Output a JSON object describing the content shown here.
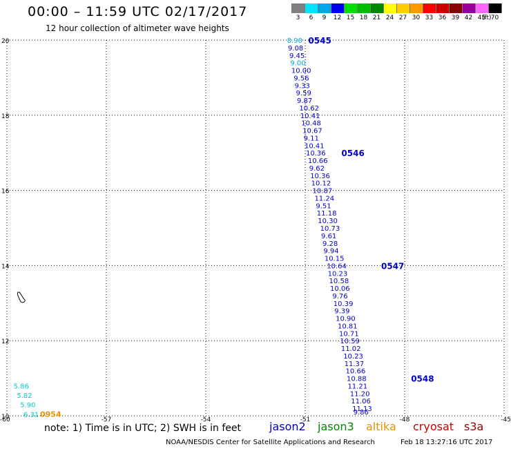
{
  "header": {
    "title": "00:00 – 11:59 UTC 02/17/2017",
    "subtitle": "12 hour collection of altimeter wave heights"
  },
  "color_scale": {
    "unit_label": "(ft)",
    "bins": [
      {
        "label": "3",
        "color": "#808080"
      },
      {
        "label": "6",
        "color": "#00e5ff"
      },
      {
        "label": "9",
        "color": "#00a8e8"
      },
      {
        "label": "12",
        "color": "#0000ee"
      },
      {
        "label": "15",
        "color": "#00e000"
      },
      {
        "label": "18",
        "color": "#00bb00"
      },
      {
        "label": "21",
        "color": "#008800"
      },
      {
        "label": "24",
        "color": "#ffff00"
      },
      {
        "label": "27",
        "color": "#ffcc00"
      },
      {
        "label": "30",
        "color": "#ff9900"
      },
      {
        "label": "33",
        "color": "#ff0000"
      },
      {
        "label": "36",
        "color": "#cc0000"
      },
      {
        "label": "39",
        "color": "#880000"
      },
      {
        "label": "42",
        "color": "#990099"
      },
      {
        "label": "45",
        "color": "#ff66ff"
      },
      {
        "label": "70",
        "color": "#000000"
      }
    ]
  },
  "map": {
    "lon_range": [
      -60,
      -45
    ],
    "lat_range": [
      10,
      20
    ],
    "lon_ticks": [
      "-60",
      "-57",
      "-54",
      "-51",
      "-48",
      "-45"
    ],
    "lat_ticks": [
      "10",
      "12",
      "14",
      "16",
      "18",
      "20"
    ],
    "track_jason2": {
      "color": "#0000cc",
      "times": [
        {
          "label": "0545",
          "lon": -50.7,
          "lat": 20.0
        },
        {
          "label": "0546",
          "lon": -49.7,
          "lat": 17.0
        },
        {
          "label": "0547",
          "lon": -48.5,
          "lat": 14.0
        },
        {
          "label": "0548",
          "lon": -47.6,
          "lat": 11.0
        }
      ],
      "points": [
        {
          "lon": -51.3,
          "lat": 20.0,
          "v": "8.90",
          "c": "#00a8e8"
        },
        {
          "lon": -51.27,
          "lat": 19.8,
          "v": "9.08",
          "c": "#0000cc"
        },
        {
          "lon": -51.23,
          "lat": 19.6,
          "v": "9.45",
          "c": "#0000cc"
        },
        {
          "lon": -51.2,
          "lat": 19.4,
          "v": "9.00",
          "c": "#00a8e8"
        },
        {
          "lon": -51.17,
          "lat": 19.2,
          "v": "10.00",
          "c": "#0000cc"
        },
        {
          "lon": -51.1,
          "lat": 19.0,
          "v": "9.56",
          "c": "#0000cc"
        },
        {
          "lon": -51.07,
          "lat": 18.8,
          "v": "9.33",
          "c": "#0000cc"
        },
        {
          "lon": -51.03,
          "lat": 18.6,
          "v": "9.59",
          "c": "#0000cc"
        },
        {
          "lon": -51.0,
          "lat": 18.4,
          "v": "9.87",
          "c": "#0000cc"
        },
        {
          "lon": -50.93,
          "lat": 18.2,
          "v": "10.62",
          "c": "#0000cc"
        },
        {
          "lon": -50.9,
          "lat": 18.0,
          "v": "10.41",
          "c": "#0000cc"
        },
        {
          "lon": -50.87,
          "lat": 17.8,
          "v": "10.48",
          "c": "#0000cc"
        },
        {
          "lon": -50.83,
          "lat": 17.6,
          "v": "10.67",
          "c": "#0000cc"
        },
        {
          "lon": -50.8,
          "lat": 17.4,
          "v": "9.11",
          "c": "#0000cc"
        },
        {
          "lon": -50.77,
          "lat": 17.2,
          "v": "10.41",
          "c": "#0000cc"
        },
        {
          "lon": -50.73,
          "lat": 17.0,
          "v": "10.36",
          "c": "#0000cc"
        },
        {
          "lon": -50.67,
          "lat": 16.8,
          "v": "10.66",
          "c": "#0000cc"
        },
        {
          "lon": -50.63,
          "lat": 16.6,
          "v": "9.62",
          "c": "#0000cc"
        },
        {
          "lon": -50.6,
          "lat": 16.4,
          "v": "10.36",
          "c": "#0000cc"
        },
        {
          "lon": -50.57,
          "lat": 16.2,
          "v": "10.12",
          "c": "#0000cc"
        },
        {
          "lon": -50.53,
          "lat": 16.0,
          "v": "10.87",
          "c": "#0000cc"
        },
        {
          "lon": -50.47,
          "lat": 15.8,
          "v": "11.24",
          "c": "#0000cc"
        },
        {
          "lon": -50.43,
          "lat": 15.6,
          "v": "9.51",
          "c": "#0000cc"
        },
        {
          "lon": -50.4,
          "lat": 15.4,
          "v": "11.18",
          "c": "#0000cc"
        },
        {
          "lon": -50.37,
          "lat": 15.2,
          "v": "10.30",
          "c": "#0000cc"
        },
        {
          "lon": -50.3,
          "lat": 15.0,
          "v": "10.73",
          "c": "#0000cc"
        },
        {
          "lon": -50.27,
          "lat": 14.8,
          "v": "9.61",
          "c": "#0000cc"
        },
        {
          "lon": -50.23,
          "lat": 14.6,
          "v": "9.28",
          "c": "#0000cc"
        },
        {
          "lon": -50.2,
          "lat": 14.4,
          "v": "9.94",
          "c": "#0000cc"
        },
        {
          "lon": -50.17,
          "lat": 14.2,
          "v": "10.15",
          "c": "#0000cc"
        },
        {
          "lon": -50.1,
          "lat": 14.0,
          "v": "10.64",
          "c": "#0000cc"
        },
        {
          "lon": -50.07,
          "lat": 13.8,
          "v": "10.23",
          "c": "#0000cc"
        },
        {
          "lon": -50.03,
          "lat": 13.6,
          "v": "10.58",
          "c": "#0000cc"
        },
        {
          "lon": -50.0,
          "lat": 13.4,
          "v": "10.06",
          "c": "#0000cc"
        },
        {
          "lon": -49.93,
          "lat": 13.2,
          "v": "9.76",
          "c": "#0000cc"
        },
        {
          "lon": -49.9,
          "lat": 13.0,
          "v": "10.39",
          "c": "#0000cc"
        },
        {
          "lon": -49.87,
          "lat": 12.8,
          "v": "9.39",
          "c": "#0000cc"
        },
        {
          "lon": -49.83,
          "lat": 12.6,
          "v": "10.90",
          "c": "#0000cc"
        },
        {
          "lon": -49.77,
          "lat": 12.4,
          "v": "10.81",
          "c": "#0000cc"
        },
        {
          "lon": -49.73,
          "lat": 12.2,
          "v": "10.71",
          "c": "#0000cc"
        },
        {
          "lon": -49.7,
          "lat": 12.0,
          "v": "10.59",
          "c": "#0000cc"
        },
        {
          "lon": -49.67,
          "lat": 11.8,
          "v": "11.02",
          "c": "#0000cc"
        },
        {
          "lon": -49.6,
          "lat": 11.6,
          "v": "10.23",
          "c": "#0000cc"
        },
        {
          "lon": -49.57,
          "lat": 11.4,
          "v": "11.37",
          "c": "#0000cc"
        },
        {
          "lon": -49.53,
          "lat": 11.2,
          "v": "10.66",
          "c": "#0000cc"
        },
        {
          "lon": -49.5,
          "lat": 11.0,
          "v": "10.88",
          "c": "#0000cc"
        },
        {
          "lon": -49.47,
          "lat": 10.8,
          "v": "11.21",
          "c": "#0000cc"
        },
        {
          "lon": -49.4,
          "lat": 10.6,
          "v": "11.20",
          "c": "#0000cc"
        },
        {
          "lon": -49.37,
          "lat": 10.4,
          "v": "11.06",
          "c": "#0000cc"
        },
        {
          "lon": -49.33,
          "lat": 10.2,
          "v": "11.13",
          "c": "#0000cc"
        },
        {
          "lon": -49.3,
          "lat": 10.0,
          "v": "9.86",
          "c": "#0000cc"
        }
      ]
    },
    "track_other": {
      "points": [
        {
          "lon": -59.8,
          "lat": 10.8,
          "v": "5.86",
          "c": "#00cccc"
        },
        {
          "lon": -59.7,
          "lat": 10.55,
          "v": "5.82",
          "c": "#00cccc"
        },
        {
          "lon": -59.6,
          "lat": 10.3,
          "v": "5.90",
          "c": "#00cccc"
        },
        {
          "lon": -59.5,
          "lat": 10.05,
          "v": "6.31",
          "c": "#00cccc"
        }
      ],
      "time_label": {
        "label": "0954",
        "lon": -59.0,
        "lat": 10.05,
        "color": "#e69500"
      }
    }
  },
  "footer": {
    "note": "note: 1) Time is in UTC; 2) SWH is in feet",
    "satellites": [
      {
        "name": "jason2",
        "color": "#0000cc"
      },
      {
        "name": "jason3",
        "color": "#008800"
      },
      {
        "name": "altika",
        "color": "#e69500"
      },
      {
        "name": "cryosat",
        "color": "#cc0000"
      },
      {
        "name": "s3a",
        "color": "#990000"
      }
    ],
    "credit": "NOAA/NESDIS Center for Satellite Applications and Research",
    "timestamp": "Feb 18 13:27:16 UTC 2017"
  }
}
